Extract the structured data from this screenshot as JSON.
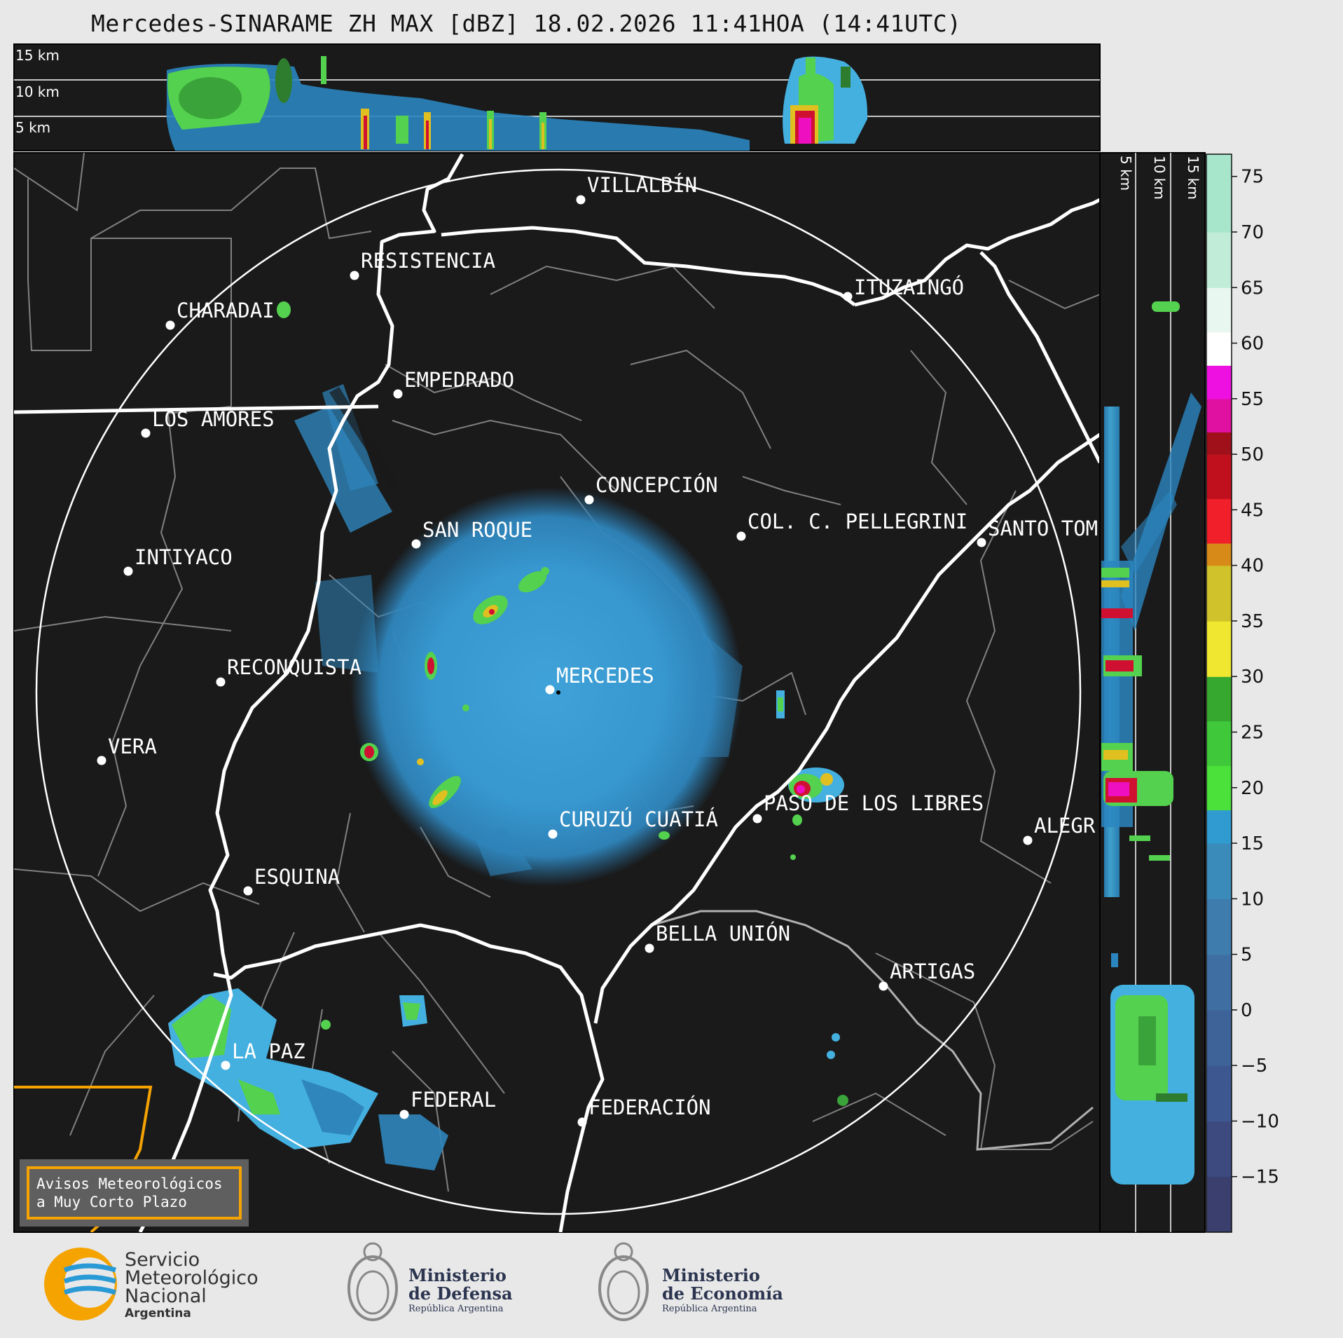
{
  "title": "Mercedes-SINARAME ZH MAX [dBZ] 18.02.2026 11:41HOA (14:41UTC)",
  "top_panel": {
    "height_labels": [
      "15 km",
      "10 km",
      "5 km"
    ]
  },
  "side_panel": {
    "height_labels": [
      "5 km",
      "10 km",
      "15 km"
    ]
  },
  "cities": [
    {
      "name": "VILLALBÍN"
    },
    {
      "name": "RESISTENCIA"
    },
    {
      "name": "CHARADAI"
    },
    {
      "name": "ITUZAINGÓ"
    },
    {
      "name": "EMPEDRADO"
    },
    {
      "name": "LOS AMORES"
    },
    {
      "name": "CONCEPCIÓN"
    },
    {
      "name": "SAN ROQUE"
    },
    {
      "name": "COL. C. PELLEGRINI"
    },
    {
      "name": "SANTO TOM"
    },
    {
      "name": "INTIYACO"
    },
    {
      "name": "MERCEDES"
    },
    {
      "name": "RECONQUISTA"
    },
    {
      "name": "VERA"
    },
    {
      "name": "CURUZÚ CUATIÁ"
    },
    {
      "name": "PASO DE LOS LIBRES"
    },
    {
      "name": "ALEGR"
    },
    {
      "name": "ESQUINA"
    },
    {
      "name": "BELLA UNIÓN"
    },
    {
      "name": "ARTIGAS"
    },
    {
      "name": "LA PAZ"
    },
    {
      "name": "FEDERAL"
    },
    {
      "name": "FEDERACIÓN"
    }
  ],
  "colorbar": {
    "unit": "dBZ",
    "ticks": [
      "75",
      "70",
      "65",
      "60",
      "55",
      "50",
      "45",
      "40",
      "35",
      "30",
      "25",
      "20",
      "15",
      "10",
      "5",
      "0",
      "−5",
      "−10",
      "−15"
    ],
    "range": [
      -20,
      77
    ]
  },
  "notice": {
    "line1": "Avisos Meteorológicos",
    "line2": "a Muy Corto Plazo"
  },
  "logos": {
    "smn": [
      "Servicio",
      "Meteorológico",
      "Nacional",
      "Argentina"
    ],
    "defensa": [
      "Ministerio",
      "de Defensa",
      "República Argentina"
    ],
    "economia": [
      "Ministerio",
      "de Economía",
      "República Argentina"
    ]
  }
}
